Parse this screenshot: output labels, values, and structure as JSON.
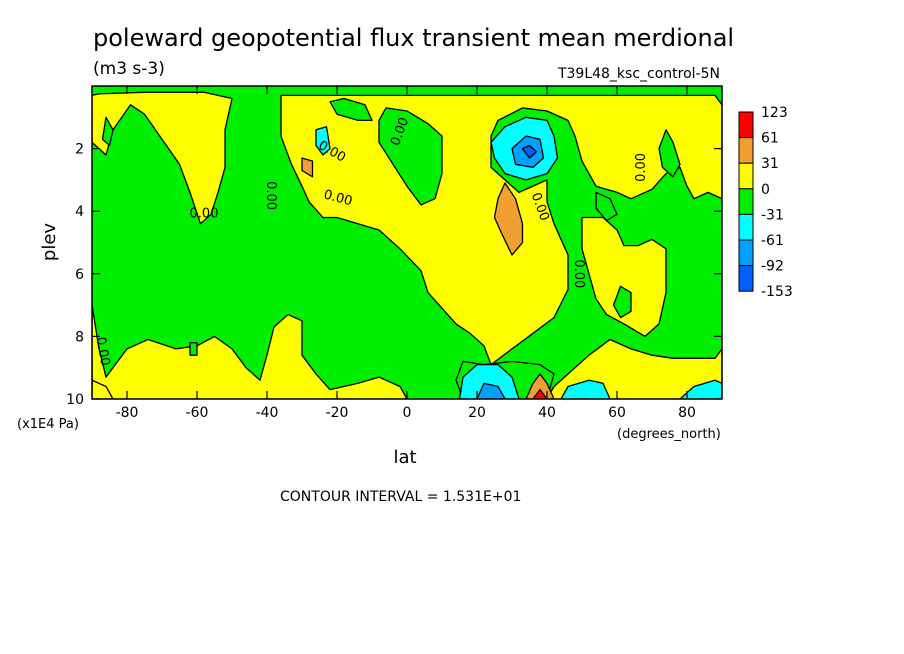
{
  "chart_data": {
    "type": "heatmap",
    "title": "poleward geopotential flux transient mean merdional",
    "units": "(m3 s-3)",
    "experiment": "T39L48_ksc_control-5N",
    "xlabel": "lat",
    "ylabel": "plev",
    "x_unit": "(degrees_north)",
    "y_unit": "(x1E4 Pa)",
    "xlim": [
      -90,
      90
    ],
    "ylim": [
      10,
      0
    ],
    "x_ticks": [
      "-80",
      "-60",
      "-40",
      "-20",
      "0",
      "20",
      "40",
      "60",
      "80"
    ],
    "x_tick_values": [
      -80,
      -60,
      -40,
      -20,
      0,
      20,
      40,
      60,
      80
    ],
    "y_ticks": [
      "2",
      "4",
      "6",
      "8",
      "10"
    ],
    "y_tick_values": [
      2,
      4,
      6,
      8,
      10
    ],
    "contour_interval_text": "CONTOUR INTERVAL = 1.531E+01",
    "contour_labels": [
      "0.00"
    ],
    "colorbar": {
      "labels": [
        "123",
        "61",
        "31",
        "0",
        "-31",
        "-61",
        "-92",
        "-153"
      ],
      "bins": [
        {
          "color": "#ff0000"
        },
        {
          "color": "#f0a030"
        },
        {
          "color": "#ffff00"
        },
        {
          "color": "#00ee00"
        },
        {
          "color": "#00ffff"
        },
        {
          "color": "#00a0ff"
        },
        {
          "color": "#0060ff"
        }
      ]
    },
    "background_color": "#00ee00",
    "regions": [
      {
        "level": "0 to 31",
        "color": "#ffff00",
        "poly": [
          [
            -90,
            0.3
          ],
          [
            -90,
            1.8
          ],
          [
            -86,
            2.2
          ],
          [
            -84,
            1.4
          ],
          [
            -79,
            0.6
          ],
          [
            -75,
            0.9
          ],
          [
            -70,
            1.7
          ],
          [
            -65,
            2.5
          ],
          [
            -62,
            3.4
          ],
          [
            -59,
            4.4
          ],
          [
            -56,
            4.1
          ],
          [
            -54,
            3.4
          ],
          [
            -52,
            2.6
          ],
          [
            -52,
            1.4
          ],
          [
            -50,
            0.4
          ],
          [
            -58,
            0.2
          ],
          [
            -75,
            0.2
          ],
          [
            -88,
            0.25
          ]
        ]
      },
      {
        "level": "0 to 31",
        "color": "#ffff00",
        "poly": [
          [
            -90,
            7.0
          ],
          [
            -88,
            8.4
          ],
          [
            -86,
            9.3
          ],
          [
            -84,
            9.0
          ],
          [
            -80,
            8.4
          ],
          [
            -74,
            8.1
          ],
          [
            -66,
            8.4
          ],
          [
            -60,
            8.3
          ],
          [
            -55,
            8.0
          ],
          [
            -50,
            8.4
          ],
          [
            -46,
            9.0
          ],
          [
            -42,
            9.4
          ],
          [
            -40,
            8.6
          ],
          [
            -38,
            7.7
          ],
          [
            -34,
            7.3
          ],
          [
            -30,
            7.5
          ],
          [
            -30,
            8.6
          ],
          [
            -26,
            9.2
          ],
          [
            -22,
            9.7
          ],
          [
            -14,
            9.5
          ],
          [
            -8,
            9.3
          ],
          [
            -2,
            9.6
          ],
          [
            0,
            10
          ],
          [
            -90,
            10
          ]
        ]
      },
      {
        "level": "0 to 31",
        "color": "#ffff00",
        "poly": [
          [
            -90,
            9.4
          ],
          [
            -86,
            9.6
          ],
          [
            -84,
            10
          ],
          [
            -90,
            10
          ]
        ]
      },
      {
        "level": "0 to 31",
        "color": "#ffff00",
        "poly": [
          [
            -36,
            0.3
          ],
          [
            -36,
            1.6
          ],
          [
            -33,
            2.5
          ],
          [
            -30,
            3.2
          ],
          [
            -28,
            3.7
          ],
          [
            -24,
            4.2
          ],
          [
            -20,
            4.2
          ],
          [
            -14,
            4.4
          ],
          [
            -8,
            4.6
          ],
          [
            -2,
            5.2
          ],
          [
            4,
            5.9
          ],
          [
            6,
            6.6
          ],
          [
            10,
            7.1
          ],
          [
            14,
            7.6
          ],
          [
            18,
            7.9
          ],
          [
            22,
            8.3
          ],
          [
            24,
            8.9
          ],
          [
            30,
            8.4
          ],
          [
            36,
            7.9
          ],
          [
            42,
            7.4
          ],
          [
            46,
            6.5
          ],
          [
            46,
            5.4
          ],
          [
            42,
            4.4
          ],
          [
            40,
            3.7
          ],
          [
            40,
            3.0
          ],
          [
            32,
            3.4
          ],
          [
            28,
            3.0
          ],
          [
            24,
            2.6
          ],
          [
            24,
            1.6
          ],
          [
            26,
            1.1
          ],
          [
            33,
            0.7
          ],
          [
            40,
            0.8
          ],
          [
            46,
            1.1
          ],
          [
            48,
            1.6
          ],
          [
            50,
            2.4
          ],
          [
            54,
            3.2
          ],
          [
            60,
            3.4
          ],
          [
            64,
            3.6
          ],
          [
            70,
            3.3
          ],
          [
            74,
            2.8
          ],
          [
            78,
            2.6
          ],
          [
            80,
            3.2
          ],
          [
            82,
            3.6
          ],
          [
            86,
            3.4
          ],
          [
            90,
            3.6
          ],
          [
            90,
            0.6
          ],
          [
            88,
            0.3
          ],
          [
            70,
            0.3
          ],
          [
            50,
            0.3
          ],
          [
            30,
            0.3
          ],
          [
            6,
            0.3
          ],
          [
            -16,
            0.3
          ]
        ]
      },
      {
        "level": "0 to 31",
        "color": "#ffff00",
        "poly": [
          [
            40,
            10
          ],
          [
            42,
            9.6
          ],
          [
            46,
            9.2
          ],
          [
            52,
            8.6
          ],
          [
            58,
            8.1
          ],
          [
            64,
            8.4
          ],
          [
            70,
            8.6
          ],
          [
            76,
            8.7
          ],
          [
            82,
            8.7
          ],
          [
            88,
            8.7
          ],
          [
            90,
            8.4
          ],
          [
            90,
            10
          ]
        ]
      },
      {
        "level": "0 to 31",
        "color": "#ffff00",
        "poly": [
          [
            50,
            4.2
          ],
          [
            56,
            4.2
          ],
          [
            60,
            4.6
          ],
          [
            62,
            5.1
          ],
          [
            66,
            5.1
          ],
          [
            70,
            4.9
          ],
          [
            74,
            5.2
          ],
          [
            74,
            6.6
          ],
          [
            72,
            7.6
          ],
          [
            68,
            8.0
          ],
          [
            62,
            7.6
          ],
          [
            57,
            7.3
          ],
          [
            54,
            6.8
          ],
          [
            52,
            6.0
          ],
          [
            50,
            5.2
          ]
        ]
      },
      {
        "level": "0 to -31",
        "color": "#00ee00",
        "poly": [
          [
            -8,
            1.1
          ],
          [
            -6,
            0.7
          ],
          [
            0,
            0.8
          ],
          [
            6,
            1.2
          ],
          [
            10,
            1.6
          ],
          [
            10,
            2.8
          ],
          [
            8,
            3.6
          ],
          [
            4,
            3.8
          ],
          [
            0,
            3.2
          ],
          [
            -4,
            2.5
          ],
          [
            -8,
            1.8
          ]
        ]
      },
      {
        "level": "0 to -31",
        "color": "#00ee00",
        "poly": [
          [
            -22,
            0.5
          ],
          [
            -18,
            0.4
          ],
          [
            -12,
            0.6
          ],
          [
            -10,
            1.1
          ],
          [
            -14,
            1.1
          ],
          [
            -20,
            0.9
          ]
        ]
      },
      {
        "level": "0 to -31",
        "color": "#00ee00",
        "poly": [
          [
            -86,
            1.0
          ],
          [
            -84,
            1.4
          ],
          [
            -85,
            1.9
          ],
          [
            -87,
            1.7
          ]
        ]
      },
      {
        "level": "0 to -31",
        "color": "#00ee00",
        "poly": [
          [
            54,
            3.4
          ],
          [
            58,
            3.6
          ],
          [
            60,
            4.1
          ],
          [
            57,
            4.3
          ],
          [
            54,
            3.9
          ]
        ]
      },
      {
        "level": "0 to -31",
        "color": "#00ee00",
        "poly": [
          [
            74,
            1.4
          ],
          [
            76,
            1.8
          ],
          [
            78,
            2.5
          ],
          [
            76,
            2.9
          ],
          [
            73,
            2.6
          ],
          [
            72,
            2.0
          ]
        ]
      },
      {
        "level": "0 to -31",
        "color": "#00ee00",
        "poly": [
          [
            61,
            6.4
          ],
          [
            64,
            6.6
          ],
          [
            64,
            7.2
          ],
          [
            61,
            7.4
          ],
          [
            59,
            7.0
          ]
        ]
      },
      {
        "level": "0 to -31",
        "color": "#00ee00",
        "poly": [
          [
            -62,
            8.2
          ],
          [
            -60,
            8.2
          ],
          [
            -60,
            8.6
          ],
          [
            -62,
            8.6
          ]
        ]
      },
      {
        "level": "0 to -31",
        "color": "#00ee00",
        "poly": [
          [
            -92,
            9.0
          ],
          [
            -90,
            8.9
          ],
          [
            -90,
            9.6
          ],
          [
            -92,
            9.6
          ]
        ]
      },
      {
        "level": "0 to -31",
        "color": "#00ee00",
        "poly": [
          [
            16,
            8.8
          ],
          [
            22,
            8.9
          ],
          [
            30,
            8.8
          ],
          [
            38,
            8.9
          ],
          [
            42,
            9.2
          ],
          [
            40,
            10
          ],
          [
            16,
            10
          ],
          [
            14,
            9.4
          ]
        ]
      },
      {
        "level": "31 to 61",
        "color": "#f0a030",
        "poly": [
          [
            -30,
            2.3
          ],
          [
            -27,
            2.4
          ],
          [
            -27,
            2.9
          ],
          [
            -30,
            2.7
          ]
        ]
      },
      {
        "level": "31 to 61",
        "color": "#f0a030",
        "poly": [
          [
            26,
            3.6
          ],
          [
            28,
            3.1
          ],
          [
            31,
            3.6
          ],
          [
            33,
            4.4
          ],
          [
            33,
            5.0
          ],
          [
            30,
            5.4
          ],
          [
            27,
            4.7
          ],
          [
            25,
            4.2
          ]
        ]
      },
      {
        "level": "31 to 61",
        "color": "#f0a030",
        "poly": [
          [
            34,
            10
          ],
          [
            36,
            9.5
          ],
          [
            38,
            9.2
          ],
          [
            40,
            9.5
          ],
          [
            42,
            10
          ]
        ]
      },
      {
        "level": "61 to 123",
        "color": "#ff0000",
        "poly": [
          [
            36,
            10
          ],
          [
            38,
            9.7
          ],
          [
            40,
            10
          ]
        ]
      },
      {
        "level": "-31 to -61",
        "color": "#00ffff",
        "poly": [
          [
            -26,
            1.4
          ],
          [
            -23,
            1.3
          ],
          [
            -22,
            2.0
          ],
          [
            -24,
            2.2
          ],
          [
            -26,
            1.9
          ]
        ]
      },
      {
        "level": "-31 to -61",
        "color": "#00ffff",
        "poly": [
          [
            24,
            1.8
          ],
          [
            28,
            1.3
          ],
          [
            34,
            1.0
          ],
          [
            40,
            1.1
          ],
          [
            42,
            1.6
          ],
          [
            43,
            2.3
          ],
          [
            40,
            2.8
          ],
          [
            34,
            3.0
          ],
          [
            28,
            2.8
          ],
          [
            25,
            2.3
          ]
        ]
      },
      {
        "level": "-31 to -61",
        "color": "#00ffff",
        "poly": [
          [
            15,
            10
          ],
          [
            16,
            9.3
          ],
          [
            20,
            8.9
          ],
          [
            26,
            8.9
          ],
          [
            30,
            9.3
          ],
          [
            32,
            10
          ]
        ]
      },
      {
        "level": "-31 to -61",
        "color": "#00ffff",
        "poly": [
          [
            44,
            10
          ],
          [
            46,
            9.6
          ],
          [
            52,
            9.4
          ],
          [
            56,
            9.5
          ],
          [
            58,
            10
          ]
        ]
      },
      {
        "level": "-31 to -61",
        "color": "#00ffff",
        "poly": [
          [
            78,
            10
          ],
          [
            82,
            9.6
          ],
          [
            88,
            9.4
          ],
          [
            90,
            9.5
          ],
          [
            90,
            10
          ]
        ]
      },
      {
        "level": "-61 to -92",
        "color": "#00a0ff",
        "poly": [
          [
            30,
            2.0
          ],
          [
            34,
            1.6
          ],
          [
            38,
            1.7
          ],
          [
            39,
            2.3
          ],
          [
            36,
            2.6
          ],
          [
            31,
            2.5
          ]
        ]
      },
      {
        "level": "-61 to -92",
        "color": "#00a0ff",
        "poly": [
          [
            20,
            10
          ],
          [
            22,
            9.5
          ],
          [
            26,
            9.6
          ],
          [
            28,
            10
          ]
        ]
      },
      {
        "level": "-92 to -153",
        "color": "#0060ff",
        "poly": [
          [
            33,
            2.0
          ],
          [
            35,
            1.9
          ],
          [
            37,
            2.1
          ],
          [
            35,
            2.3
          ]
        ]
      }
    ],
    "contour_label_positions": [
      [
        -58,
        4.2,
        0
      ],
      [
        -40,
        3.5,
        90
      ],
      [
        -22,
        2.2,
        30
      ],
      [
        -20,
        3.7,
        15
      ],
      [
        -1,
        1.5,
        -70
      ],
      [
        37,
        3.9,
        70
      ],
      [
        48,
        6.0,
        90
      ],
      [
        68,
        2.6,
        -90
      ],
      [
        -88,
        8.5,
        80
      ]
    ]
  }
}
